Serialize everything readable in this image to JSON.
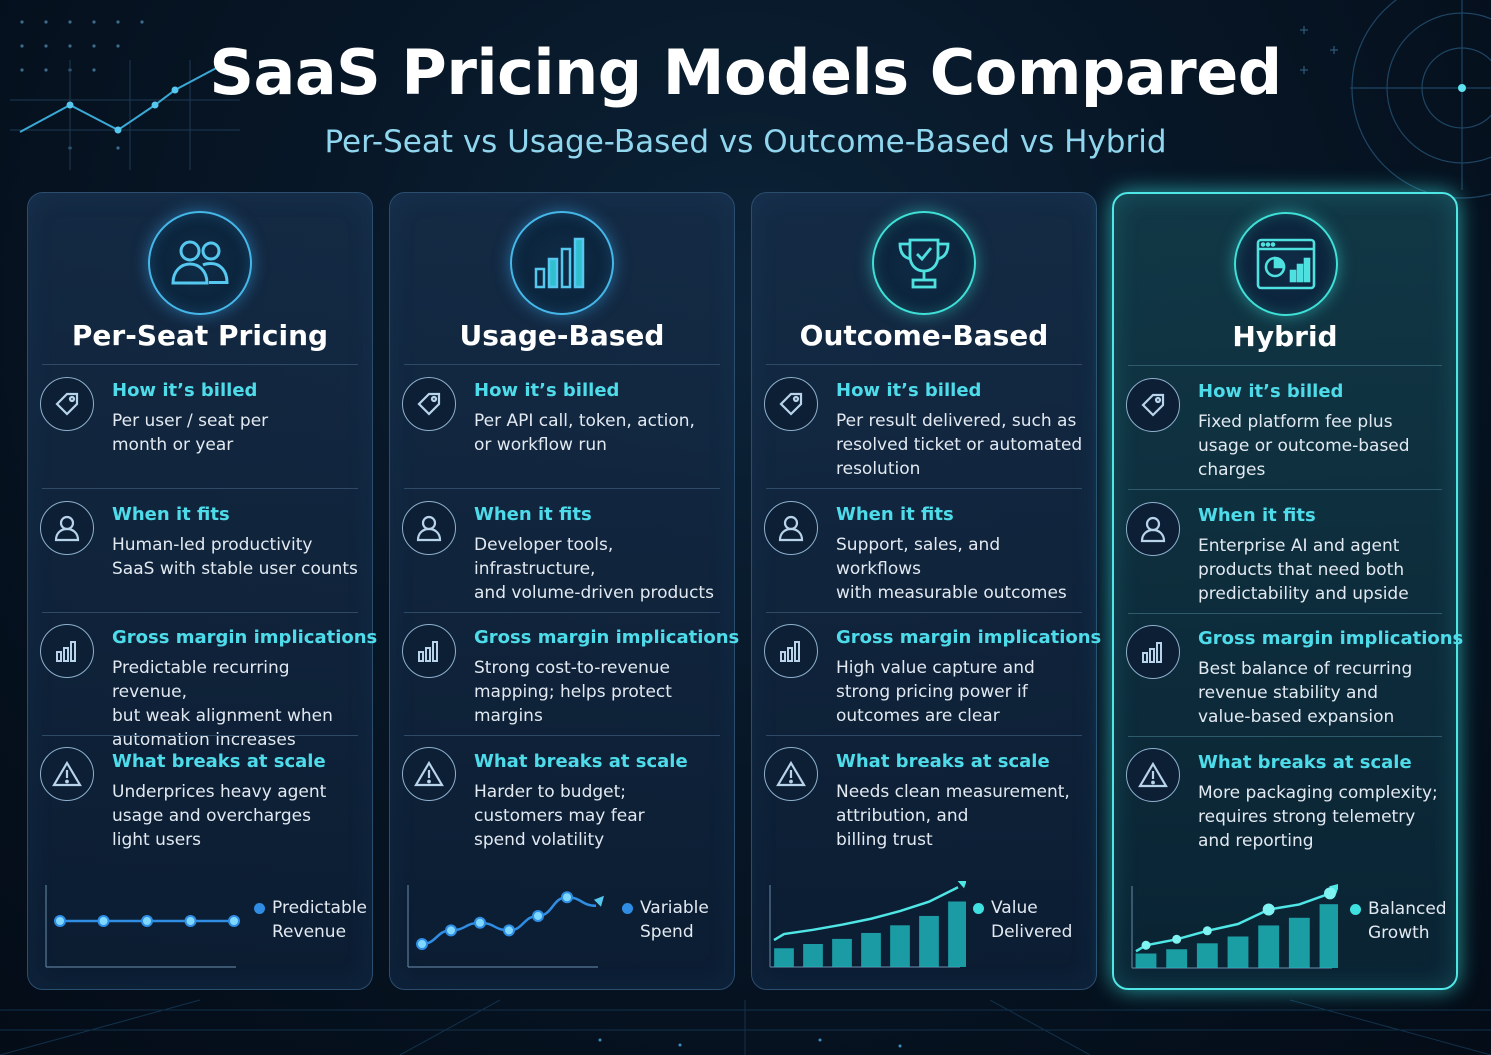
{
  "header": {
    "title": "SaaS Pricing Models Compared",
    "subtitle": "Per-Seat vs Usage-Based vs Outcome-Based vs Hybrid"
  },
  "colors": {
    "accent_blue": "#45b8ea",
    "accent_teal": "#4fe6e6",
    "section_heading": "#4fdcea",
    "background": "#071626"
  },
  "cards": [
    {
      "title": "Per-Seat Pricing",
      "icon": "users-icon",
      "sections": [
        {
          "icon": "price-tag-icon",
          "heading": "How it’s billed",
          "lines": [
            "Per user / seat per",
            "month or year"
          ]
        },
        {
          "icon": "user-icon",
          "heading": "When it fits",
          "lines": [
            "Human-led productivity",
            "SaaS with stable user counts"
          ]
        },
        {
          "icon": "bar-chart-icon",
          "heading": "Gross margin implications",
          "lines": [
            "Predictable recurring revenue,",
            "but weak alignment when",
            "automation increases"
          ]
        },
        {
          "icon": "warning-icon",
          "heading": "What breaks at scale",
          "lines": [
            "Underprices heavy agent",
            "usage and overcharges",
            "light users"
          ]
        }
      ],
      "legend": [
        "Predictable",
        "Revenue"
      ],
      "chart_data": {
        "type": "line",
        "values": [
          5,
          5,
          5,
          5,
          5
        ]
      }
    },
    {
      "title": "Usage-Based",
      "icon": "bar-chart-icon",
      "sections": [
        {
          "icon": "price-tag-icon",
          "heading": "How it’s billed",
          "lines": [
            "Per API call, token, action,",
            "or workflow run"
          ]
        },
        {
          "icon": "user-icon",
          "heading": "When it fits",
          "lines": [
            "Developer tools, infrastructure,",
            "and volume-driven products"
          ]
        },
        {
          "icon": "bar-chart-icon",
          "heading": "Gross margin implications",
          "lines": [
            "Strong cost-to-revenue",
            "mapping; helps protect",
            "margins"
          ]
        },
        {
          "icon": "warning-icon",
          "heading": "What breaks at scale",
          "lines": [
            "Harder to budget;",
            "customers may fear",
            "spend volatility"
          ]
        }
      ],
      "legend": [
        "Variable",
        "Spend"
      ],
      "chart_data": {
        "type": "line",
        "values": [
          2,
          3.6,
          4.5,
          3.6,
          5.3,
          7.5,
          6.5
        ]
      }
    },
    {
      "title": "Outcome-Based",
      "icon": "trophy-icon",
      "sections": [
        {
          "icon": "price-tag-icon",
          "heading": "How it’s billed",
          "lines": [
            "Per result delivered, such as",
            "resolved ticket or automated",
            "resolution"
          ]
        },
        {
          "icon": "user-icon",
          "heading": "When it fits",
          "lines": [
            "Support, sales, and workflows",
            "with measurable outcomes"
          ]
        },
        {
          "icon": "bar-chart-icon",
          "heading": "Gross margin implications",
          "lines": [
            "High value capture and",
            "strong pricing power if",
            "outcomes are clear"
          ]
        },
        {
          "icon": "warning-icon",
          "heading": "What breaks at scale",
          "lines": [
            "Needs clean measurement,",
            "attribution, and",
            "billing trust"
          ]
        }
      ],
      "legend": [
        "Value",
        "Delivered"
      ],
      "chart_data": {
        "type": "bar",
        "values": [
          1.5,
          2,
          2.6,
          3.3,
          4.2,
          5.3,
          7
        ]
      }
    },
    {
      "title": "Hybrid",
      "icon": "dashboard-icon",
      "sections": [
        {
          "icon": "price-tag-icon",
          "heading": "How it’s billed",
          "lines": [
            "Fixed platform fee plus",
            "usage or outcome-based",
            "charges"
          ]
        },
        {
          "icon": "user-icon",
          "heading": "When it fits",
          "lines": [
            "Enterprise AI and agent",
            "products that need both",
            "predictability and upside"
          ]
        },
        {
          "icon": "bar-chart-icon",
          "heading": "Gross margin implications",
          "lines": [
            "Best balance of recurring",
            "revenue stability and",
            "value-based expansion"
          ]
        },
        {
          "icon": "warning-icon",
          "heading": "What breaks at scale",
          "lines": [
            "More packaging complexity;",
            "requires strong telemetry",
            "and reporting"
          ]
        }
      ],
      "legend": [
        "Balanced",
        "Growth"
      ],
      "chart_data": {
        "type": "bar+line",
        "values": [
          1,
          1.5,
          2.2,
          3,
          4.3,
          5.2,
          6.8
        ],
        "line": [
          1.5,
          2.2,
          3.2,
          4,
          5.7,
          6.3,
          7.6
        ]
      }
    }
  ]
}
